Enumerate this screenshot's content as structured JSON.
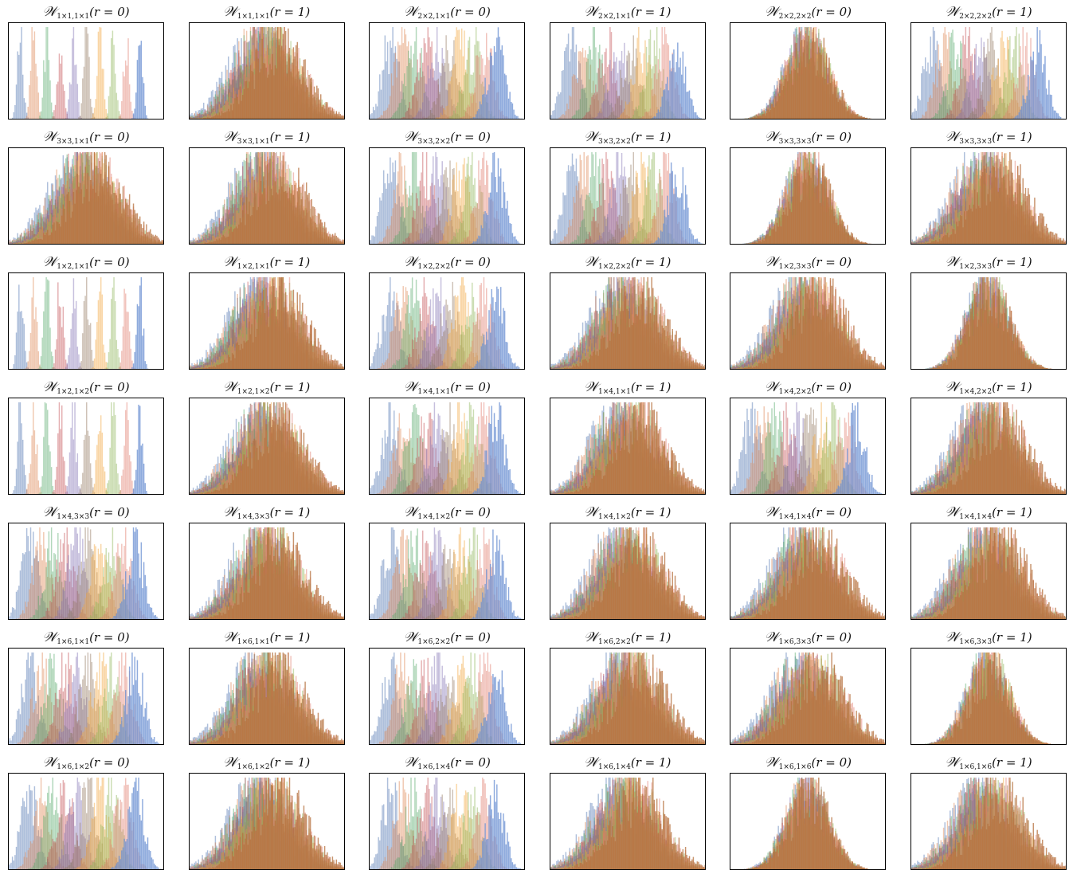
{
  "figure": {
    "grid": {
      "rows": 7,
      "cols": 6
    },
    "series_colors": [
      "#4c72b0",
      "#dd8452",
      "#55a868",
      "#c44e52",
      "#8172b3",
      "#937860",
      "#f2a33a",
      "#8bb356",
      "#e07b6b",
      "#6a8fd1"
    ],
    "overlap_color": "#b5703d"
  },
  "chart_data": [
    {
      "type": "histogram",
      "title": {
        "sub": "1×1,1×1",
        "r": "r = 0"
      },
      "pattern": "separated-narrow",
      "series_count": 10,
      "xticks": "none",
      "yticks": "none"
    },
    {
      "type": "histogram",
      "title": {
        "sub": "1×1,1×1",
        "r": "r = 1"
      },
      "pattern": "overlapped-wide",
      "series_count": 10,
      "xticks": "none",
      "yticks": "none"
    },
    {
      "type": "histogram",
      "title": {
        "sub": "2×2,1×1",
        "r": "r = 0"
      },
      "pattern": "separated-medium",
      "series_count": 10,
      "xticks": "none",
      "yticks": "none"
    },
    {
      "type": "histogram",
      "title": {
        "sub": "2×2,1×1",
        "r": "r = 1"
      },
      "pattern": "separated-medium",
      "series_count": 10,
      "xticks": "none",
      "yticks": "none"
    },
    {
      "type": "histogram",
      "title": {
        "sub": "2×2,2×2",
        "r": "r = 0"
      },
      "pattern": "single-peak",
      "series_count": 10,
      "xticks": "none",
      "yticks": "none"
    },
    {
      "type": "histogram",
      "title": {
        "sub": "2×2,2×2",
        "r": "r = 1"
      },
      "pattern": "separated-medium",
      "series_count": 10,
      "xticks": "none",
      "yticks": "none"
    },
    {
      "type": "histogram",
      "title": {
        "sub": "3×3,1×1",
        "r": "r = 0"
      },
      "pattern": "overlapped-wide",
      "series_count": 10,
      "xticks": "none",
      "yticks": "none"
    },
    {
      "type": "histogram",
      "title": {
        "sub": "3×3,1×1",
        "r": "r = 1"
      },
      "pattern": "overlapped-wide",
      "series_count": 10,
      "xticks": "none",
      "yticks": "none"
    },
    {
      "type": "histogram",
      "title": {
        "sub": "3×3,2×2",
        "r": "r = 0"
      },
      "pattern": "separated-medium",
      "series_count": 10,
      "xticks": "none",
      "yticks": "none"
    },
    {
      "type": "histogram",
      "title": {
        "sub": "3×3,2×2",
        "r": "r = 1"
      },
      "pattern": "separated-medium",
      "series_count": 10,
      "xticks": "none",
      "yticks": "none"
    },
    {
      "type": "histogram",
      "title": {
        "sub": "3×3,3×3",
        "r": "r = 0"
      },
      "pattern": "single-peak",
      "series_count": 10,
      "xticks": "none",
      "yticks": "none"
    },
    {
      "type": "histogram",
      "title": {
        "sub": "3×3,3×3",
        "r": "r = 1"
      },
      "pattern": "overlapped-wide",
      "series_count": 10,
      "xticks": "none",
      "yticks": "none"
    },
    {
      "type": "histogram",
      "title": {
        "sub": "1×2,1×1",
        "r": "r = 0"
      },
      "pattern": "separated-narrow",
      "series_count": 10,
      "xticks": "none",
      "yticks": "none"
    },
    {
      "type": "histogram",
      "title": {
        "sub": "1×2,1×1",
        "r": "r = 1"
      },
      "pattern": "overlapped-wide",
      "series_count": 10,
      "xticks": "none",
      "yticks": "none"
    },
    {
      "type": "histogram",
      "title": {
        "sub": "1×2,2×2",
        "r": "r = 0"
      },
      "pattern": "separated-medium",
      "series_count": 10,
      "xticks": "none",
      "yticks": "none"
    },
    {
      "type": "histogram",
      "title": {
        "sub": "1×2,2×2",
        "r": "r = 1"
      },
      "pattern": "overlapped-wide",
      "series_count": 10,
      "xticks": "none",
      "yticks": "none"
    },
    {
      "type": "histogram",
      "title": {
        "sub": "1×2,3×3",
        "r": "r = 0"
      },
      "pattern": "overlapped-wide",
      "series_count": 10,
      "xticks": "none",
      "yticks": "none"
    },
    {
      "type": "histogram",
      "title": {
        "sub": "1×2,3×3",
        "r": "r = 1"
      },
      "pattern": "single-peak",
      "series_count": 10,
      "xticks": "none",
      "yticks": "none"
    },
    {
      "type": "histogram",
      "title": {
        "sub": "1×2,1×2",
        "r": "r = 0"
      },
      "pattern": "separated-narrow",
      "series_count": 10,
      "xticks": "none",
      "yticks": "none"
    },
    {
      "type": "histogram",
      "title": {
        "sub": "1×2,1×2",
        "r": "r = 1"
      },
      "pattern": "overlapped-wide",
      "series_count": 10,
      "xticks": "none",
      "yticks": "none"
    },
    {
      "type": "histogram",
      "title": {
        "sub": "1×4,1×1",
        "r": "r = 0"
      },
      "pattern": "separated-medium",
      "series_count": 10,
      "xticks": "none",
      "yticks": "none"
    },
    {
      "type": "histogram",
      "title": {
        "sub": "1×4,1×1",
        "r": "r = 1"
      },
      "pattern": "overlapped-wide",
      "series_count": 10,
      "xticks": "none",
      "yticks": "none"
    },
    {
      "type": "histogram",
      "title": {
        "sub": "1×4,2×2",
        "r": "r = 0"
      },
      "pattern": "separated-medium",
      "series_count": 10,
      "xticks": "none",
      "yticks": "none"
    },
    {
      "type": "histogram",
      "title": {
        "sub": "1×4,2×2",
        "r": "r = 1"
      },
      "pattern": "overlapped-wide",
      "series_count": 10,
      "xticks": "none",
      "yticks": "none"
    },
    {
      "type": "histogram",
      "title": {
        "sub": "1×4,3×3",
        "r": "r = 0"
      },
      "pattern": "separated-medium",
      "series_count": 10,
      "xticks": "none",
      "yticks": "none"
    },
    {
      "type": "histogram",
      "title": {
        "sub": "1×4,3×3",
        "r": "r = 1"
      },
      "pattern": "overlapped-wide",
      "series_count": 10,
      "xticks": "none",
      "yticks": "none"
    },
    {
      "type": "histogram",
      "title": {
        "sub": "1×4,1×2",
        "r": "r = 0"
      },
      "pattern": "separated-medium",
      "series_count": 10,
      "xticks": "none",
      "yticks": "none"
    },
    {
      "type": "histogram",
      "title": {
        "sub": "1×4,1×2",
        "r": "r = 1"
      },
      "pattern": "overlapped-wide",
      "series_count": 10,
      "xticks": "none",
      "yticks": "none"
    },
    {
      "type": "histogram",
      "title": {
        "sub": "1×4,1×4",
        "r": "r = 0"
      },
      "pattern": "overlapped-wide",
      "series_count": 10,
      "xticks": "none",
      "yticks": "none"
    },
    {
      "type": "histogram",
      "title": {
        "sub": "1×4,1×4",
        "r": "r = 1"
      },
      "pattern": "overlapped-wide",
      "series_count": 10,
      "xticks": "none",
      "yticks": "none"
    },
    {
      "type": "histogram",
      "title": {
        "sub": "1×6,1×1",
        "r": "r = 0"
      },
      "pattern": "separated-medium",
      "series_count": 10,
      "xticks": "none",
      "yticks": "none"
    },
    {
      "type": "histogram",
      "title": {
        "sub": "1×6,1×1",
        "r": "r = 1"
      },
      "pattern": "overlapped-wide",
      "series_count": 10,
      "xticks": "none",
      "yticks": "none"
    },
    {
      "type": "histogram",
      "title": {
        "sub": "1×6,2×2",
        "r": "r = 0"
      },
      "pattern": "separated-medium",
      "series_count": 10,
      "xticks": "none",
      "yticks": "none"
    },
    {
      "type": "histogram",
      "title": {
        "sub": "1×6,2×2",
        "r": "r = 1"
      },
      "pattern": "overlapped-wide",
      "series_count": 10,
      "xticks": "none",
      "yticks": "none"
    },
    {
      "type": "histogram",
      "title": {
        "sub": "1×6,3×3",
        "r": "r = 0"
      },
      "pattern": "overlapped-wide",
      "series_count": 10,
      "xticks": "none",
      "yticks": "none"
    },
    {
      "type": "histogram",
      "title": {
        "sub": "1×6,3×3",
        "r": "r = 1"
      },
      "pattern": "single-peak",
      "series_count": 10,
      "xticks": "none",
      "yticks": "none"
    },
    {
      "type": "histogram",
      "title": {
        "sub": "1×6,1×2",
        "r": "r = 0"
      },
      "pattern": "separated-medium",
      "series_count": 10,
      "xticks": "none",
      "yticks": "none"
    },
    {
      "type": "histogram",
      "title": {
        "sub": "1×6,1×2",
        "r": "r = 1"
      },
      "pattern": "overlapped-wide",
      "series_count": 10,
      "xticks": "none",
      "yticks": "none"
    },
    {
      "type": "histogram",
      "title": {
        "sub": "1×6,1×4",
        "r": "r = 0"
      },
      "pattern": "separated-medium",
      "series_count": 10,
      "xticks": "none",
      "yticks": "none"
    },
    {
      "type": "histogram",
      "title": {
        "sub": "1×6,1×4",
        "r": "r = 1"
      },
      "pattern": "overlapped-wide",
      "series_count": 10,
      "xticks": "none",
      "yticks": "none"
    },
    {
      "type": "histogram",
      "title": {
        "sub": "1×6,1×6",
        "r": "r = 0"
      },
      "pattern": "single-peak",
      "series_count": 10,
      "xticks": "none",
      "yticks": "none"
    },
    {
      "type": "histogram",
      "title": {
        "sub": "1×6,1×6",
        "r": "r = 1"
      },
      "pattern": "overlapped-wide",
      "series_count": 10,
      "xticks": "none",
      "yticks": "none"
    }
  ]
}
